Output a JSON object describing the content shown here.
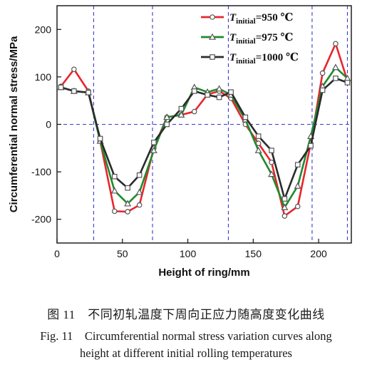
{
  "chart_data": {
    "type": "line",
    "xlabel": "Height of ring/mm",
    "ylabel": "Circumferential normal stress/MPa",
    "xlim": [
      0,
      225
    ],
    "ylim": [
      -250,
      250
    ],
    "xticks": [
      0,
      50,
      100,
      150,
      200
    ],
    "yticks": [
      -200,
      -100,
      0,
      100,
      200
    ],
    "grid": false,
    "legend_position": "top-right",
    "reference_lines": {
      "horizontal": [
        0
      ],
      "vertical": [
        28,
        73,
        131,
        195,
        222
      ]
    },
    "series": [
      {
        "name": "T_initial=950 ℃",
        "legend_symbol": "T",
        "legend_subscript": "initial",
        "legend_value": "=950 ℃",
        "color": "#e8262b",
        "marker": "circle",
        "x": [
          3,
          13,
          24,
          33,
          44,
          54,
          63,
          74,
          84,
          95,
          105,
          115,
          124,
          133,
          144,
          154,
          164,
          174,
          184,
          194,
          203,
          213,
          222
        ],
        "y": [
          80,
          116,
          70,
          -35,
          -183,
          -184,
          -170,
          -50,
          15,
          20,
          27,
          63,
          70,
          55,
          0,
          -40,
          -80,
          -193,
          -173,
          -40,
          108,
          170,
          92
        ]
      },
      {
        "name": "T_initial=975 ℃",
        "legend_symbol": "T",
        "legend_subscript": "initial",
        "legend_value": "=975 ℃",
        "color": "#1e8a2e",
        "marker": "triangle",
        "x": [
          3,
          13,
          24,
          33,
          44,
          54,
          63,
          74,
          84,
          95,
          105,
          115,
          124,
          133,
          144,
          154,
          164,
          174,
          184,
          194,
          203,
          213,
          222
        ],
        "y": [
          78,
          70,
          67,
          -35,
          -140,
          -167,
          -143,
          -55,
          15,
          20,
          78,
          68,
          75,
          62,
          10,
          -55,
          -105,
          -175,
          -130,
          -25,
          80,
          120,
          97
        ]
      },
      {
        "name": "T_initial=1000 ℃",
        "legend_symbol": "T",
        "legend_subscript": "initial",
        "legend_value": "=1000 ℃",
        "color": "#2b2b2b",
        "marker": "square",
        "x": [
          3,
          13,
          24,
          33,
          44,
          54,
          63,
          74,
          84,
          95,
          105,
          115,
          124,
          133,
          144,
          154,
          164,
          174,
          184,
          194,
          203,
          213,
          222
        ],
        "y": [
          78,
          70,
          67,
          -30,
          -110,
          -134,
          -107,
          -38,
          0,
          33,
          70,
          62,
          57,
          68,
          15,
          -25,
          -55,
          -157,
          -85,
          -45,
          72,
          97,
          88
        ]
      }
    ]
  },
  "caption": {
    "cn": "图 11　不同初轧温度下周向正应力随高度变化曲线",
    "en_line1": "Fig. 11　Circumferential normal stress variation curves along",
    "en_line2": "height at different initial rolling temperatures"
  }
}
